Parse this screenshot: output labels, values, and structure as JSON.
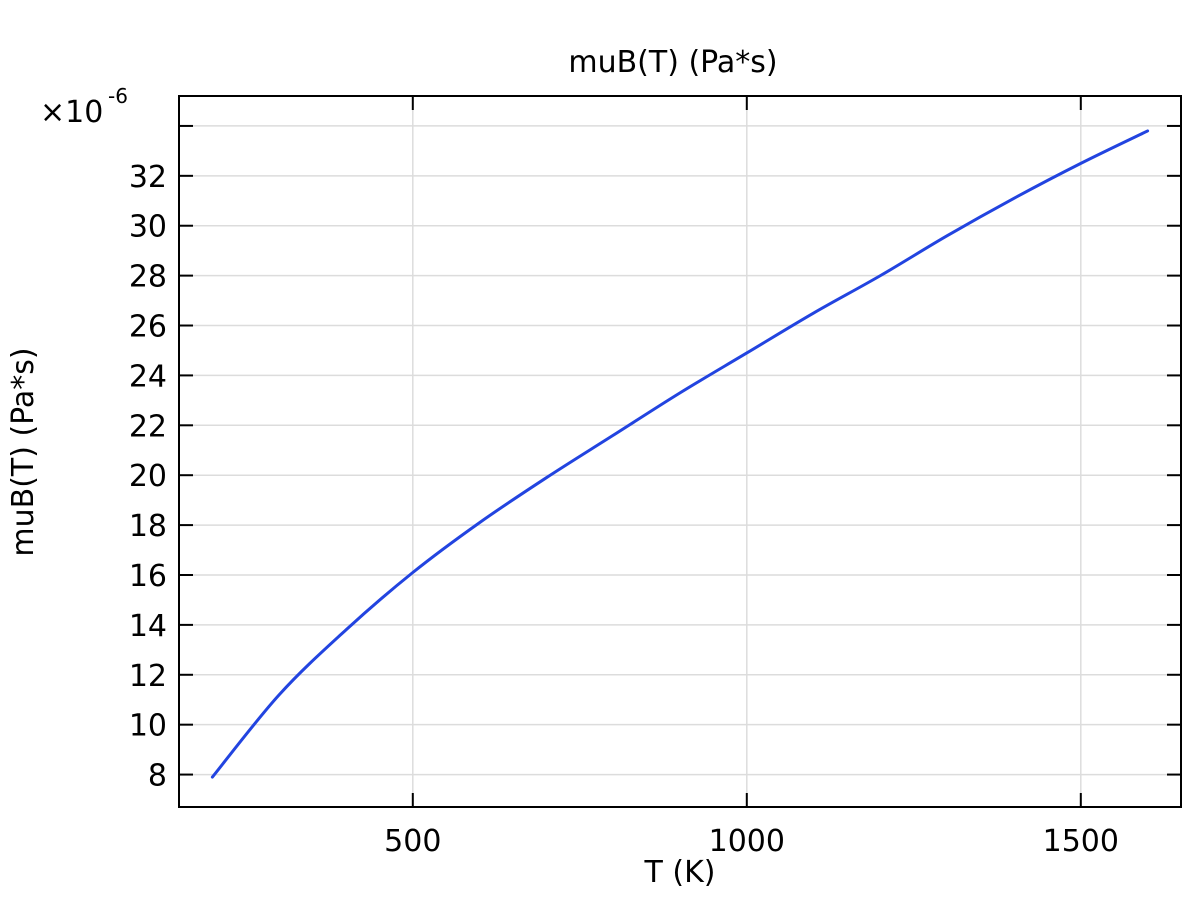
{
  "chart_data": {
    "type": "line",
    "title": "muB(T) (Pa*s)",
    "xlabel": "T (K)",
    "ylabel": "muB(T) (Pa*s)",
    "y_multiplier_base": "×10",
    "y_multiplier_exponent": "-6",
    "xlim": [
      150,
      1650
    ],
    "ylim": [
      6.7,
      35.2
    ],
    "x_ticks": [
      500,
      1000,
      1500
    ],
    "x_tick_labels": [
      "500",
      "1000",
      "1500"
    ],
    "y_ticks": [
      8,
      10,
      12,
      14,
      16,
      18,
      20,
      22,
      24,
      26,
      28,
      30,
      32
    ],
    "y_tick_labels": [
      "8",
      "10",
      "12",
      "14",
      "16",
      "18",
      "20",
      "22",
      "24",
      "26",
      "28",
      "30",
      "32"
    ],
    "y_minor_extra_tick": 34,
    "grid": true,
    "colors": {
      "line": "#2244e0",
      "grid": "#dcdcdc",
      "axes": "#000000"
    },
    "series": [
      {
        "x": [
          200,
          300,
          400,
          500,
          600,
          700,
          800,
          900,
          1000,
          1100,
          1200,
          1300,
          1400,
          1500,
          1600
        ],
        "values": [
          7.9,
          11.2,
          13.8,
          16.1,
          18.1,
          19.9,
          21.6,
          23.3,
          24.9,
          26.5,
          28.0,
          29.6,
          31.1,
          32.5,
          33.8
        ]
      }
    ]
  }
}
